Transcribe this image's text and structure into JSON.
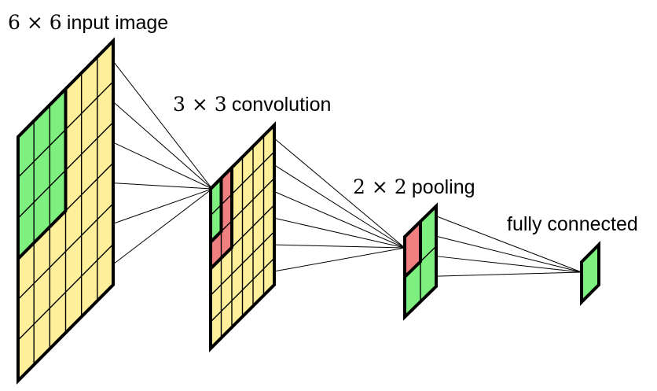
{
  "colors": {
    "background": "#ffffff",
    "cell_default": "#fef09a",
    "cell_green": "#7df07f",
    "cell_red": "#f07f7f",
    "line": "#000000"
  },
  "labels": {
    "input": {
      "math": "6 × 6",
      "text": "input image"
    },
    "conv": {
      "math": "3 × 3",
      "text": "convolution"
    },
    "pool": {
      "math": "2 × 2",
      "text": "pooling"
    },
    "fc": {
      "text": "fully connected"
    }
  },
  "layers": [
    {
      "name": "input-layer",
      "rows": 6,
      "cols": 6,
      "fill": "cell_default",
      "regions": [
        {
          "color": "cell_green",
          "r0": 0,
          "r1": 3,
          "c0": 0,
          "c1": 3,
          "outline": true
        }
      ]
    },
    {
      "name": "conv-layer",
      "rows": 6,
      "cols": 6,
      "fill": "cell_default",
      "regions": [
        {
          "color": "cell_red",
          "r0": 0,
          "r1": 3,
          "c0": 0,
          "c1": 2,
          "outline": true
        },
        {
          "color": "cell_green",
          "r0": 0,
          "r1": 2,
          "c0": 0,
          "c1": 1,
          "outline": true
        }
      ]
    },
    {
      "name": "pool-layer",
      "rows": 2,
      "cols": 2,
      "fill": "cell_green",
      "regions": [
        {
          "color": "cell_red",
          "r0": 0,
          "r1": 1,
          "c0": 0,
          "c1": 1,
          "outline": true
        }
      ]
    },
    {
      "name": "fc-layer",
      "rows": 1,
      "cols": 1,
      "fill": "cell_green",
      "regions": []
    }
  ],
  "connections": [
    {
      "from": 0,
      "to": 1,
      "count": 6
    },
    {
      "from": 1,
      "to": 2,
      "count": 6
    },
    {
      "from": 2,
      "to": 3,
      "count": 4
    }
  ]
}
